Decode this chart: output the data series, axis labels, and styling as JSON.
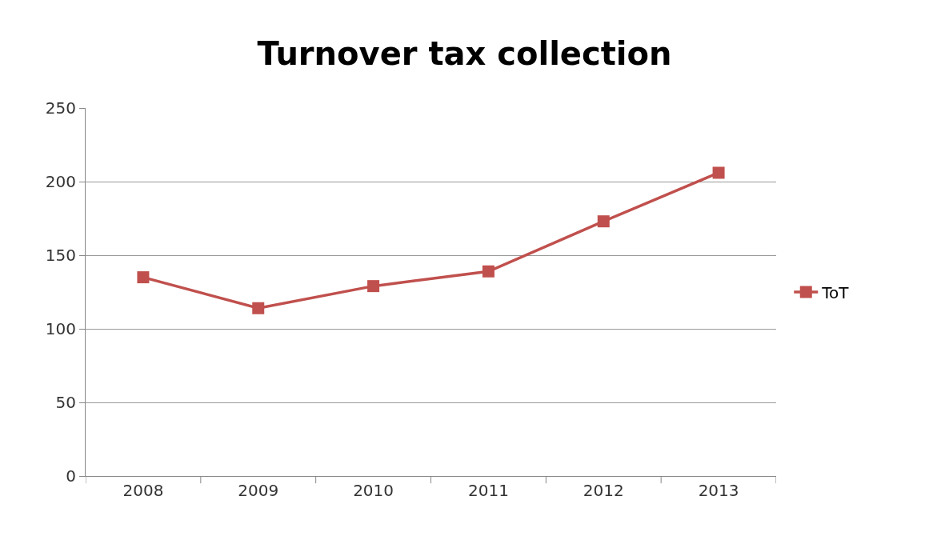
{
  "chart_data": {
    "type": "line",
    "title": "Turnover tax collection",
    "categories": [
      "2008",
      "2009",
      "2010",
      "2011",
      "2012",
      "2013"
    ],
    "series": [
      {
        "name": "ToT",
        "color": "#c0504d",
        "values": [
          135,
          114,
          129,
          139,
          173,
          206
        ]
      }
    ],
    "ylim": [
      0,
      250
    ],
    "yticks": [
      0,
      50,
      100,
      150,
      200,
      250
    ],
    "grid": "y",
    "legend": "right",
    "marker": "square",
    "line_style": "solid"
  }
}
